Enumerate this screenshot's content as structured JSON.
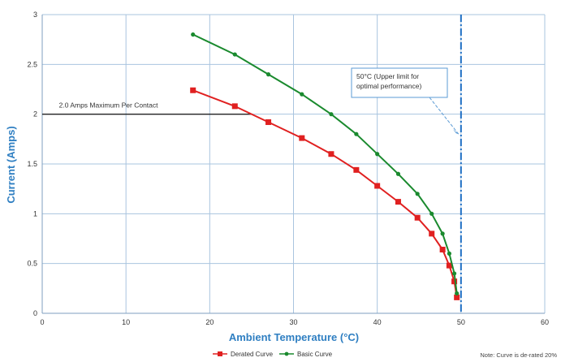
{
  "chart_data": {
    "type": "line",
    "xlabel": "Ambient Temperature (°C)",
    "ylabel": "Current (Amps)",
    "xlim": [
      0,
      60
    ],
    "ylim": [
      0,
      3
    ],
    "xticks": [
      "0",
      "10",
      "20",
      "30",
      "40",
      "50",
      "60"
    ],
    "yticks": [
      "0",
      "0.5",
      "1",
      "1.5",
      "2",
      "2.5",
      "3"
    ],
    "grid": true,
    "legend_position": "bottom",
    "series": [
      {
        "name": "Derated Curve",
        "color": "#e02020",
        "marker": "square",
        "x": [
          18,
          23,
          27,
          31,
          34.5,
          37.5,
          40,
          42.5,
          44.8,
          46.5,
          47.8,
          48.6,
          49.2,
          49.5
        ],
        "y": [
          2.24,
          2.08,
          1.92,
          1.76,
          1.6,
          1.44,
          1.28,
          1.12,
          0.96,
          0.8,
          0.64,
          0.48,
          0.32,
          0.16
        ]
      },
      {
        "name": "Basic Curve",
        "color": "#1a8a2e",
        "marker": "dot",
        "x": [
          18,
          23,
          27,
          31,
          34.5,
          37.5,
          40,
          42.5,
          44.8,
          46.5,
          47.8,
          48.6,
          49.2,
          49.5
        ],
        "y": [
          2.8,
          2.6,
          2.4,
          2.2,
          2.0,
          1.8,
          1.6,
          1.4,
          1.2,
          1.0,
          0.8,
          0.6,
          0.4,
          0.2
        ]
      }
    ],
    "reference_lines": [
      {
        "kind": "horizontal",
        "y": 2.0,
        "x_start": 0,
        "x_end": 25,
        "color": "#222222",
        "label": "2.0 Amps Maximum Per Contact"
      },
      {
        "kind": "vertical",
        "x": 50,
        "color": "#1f6fc4",
        "style": "dash-dot"
      }
    ],
    "annotations": [
      {
        "lines": [
          "50°C (Upper limit for",
          "optimal performance)"
        ],
        "arrow_to": [
          50,
          1.8
        ]
      }
    ],
    "note": "Note: Curve is de-rated 20%"
  }
}
